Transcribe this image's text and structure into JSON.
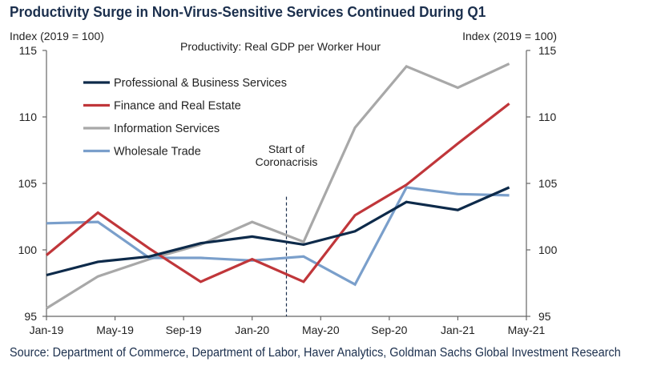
{
  "title": "Productivity Surge in Non-Virus-Sensitive Services Continued During Q1",
  "source": "Source: Department of Commerce, Department of Labor, Haver Analytics, Goldman Sachs Global Investment Research",
  "chart_data": {
    "type": "line",
    "subtitle": "Productivity: Real GDP per Worker Hour",
    "ylabel_left": "Index (2019 = 100)",
    "ylabel_right": "Index (2019 = 100)",
    "ylim": [
      95,
      115
    ],
    "yticks": [
      95,
      100,
      105,
      110,
      115
    ],
    "xlim": [
      0,
      28
    ],
    "xticks": [
      {
        "x": 0,
        "label": "Jan-19"
      },
      {
        "x": 4,
        "label": "May-19"
      },
      {
        "x": 8,
        "label": "Sep-19"
      },
      {
        "x": 12,
        "label": "Jan-20"
      },
      {
        "x": 16,
        "label": "May-20"
      },
      {
        "x": 20,
        "label": "Sep-20"
      },
      {
        "x": 24,
        "label": "Jan-21"
      },
      {
        "x": 28,
        "label": "May-21"
      }
    ],
    "annotation": {
      "x": 14,
      "lines": [
        "Start of",
        "Coronacrisis"
      ]
    },
    "legend_placement": "top-left",
    "grid": false,
    "series": [
      {
        "name": "Professional & Business Services",
        "color": "#0d2a4a",
        "x": [
          0,
          3,
          6,
          9,
          12,
          15,
          18,
          21,
          24,
          27
        ],
        "values": [
          98.1,
          99.1,
          99.5,
          100.5,
          101.0,
          100.4,
          101.4,
          103.6,
          103.0,
          104.7
        ]
      },
      {
        "name": "Finance and Real Estate",
        "color": "#c0363a",
        "x": [
          0,
          3,
          6,
          9,
          12,
          15,
          18,
          21,
          24,
          27
        ],
        "values": [
          99.6,
          102.8,
          100.1,
          97.6,
          99.3,
          97.6,
          102.6,
          104.9,
          108.0,
          111.0
        ]
      },
      {
        "name": "Information Services",
        "color": "#a8a8a8",
        "x": [
          0,
          3,
          6,
          9,
          12,
          15,
          18,
          21,
          24,
          27
        ],
        "values": [
          95.6,
          98.0,
          99.3,
          100.4,
          102.1,
          100.6,
          109.2,
          113.8,
          112.2,
          114.0
        ]
      },
      {
        "name": "Wholesale Trade",
        "color": "#7a9fcb",
        "x": [
          0,
          3,
          6,
          9,
          12,
          15,
          18,
          21,
          24,
          27
        ],
        "values": [
          102.0,
          102.1,
          99.4,
          99.4,
          99.2,
          99.5,
          97.4,
          104.7,
          104.2,
          104.1
        ]
      }
    ]
  }
}
